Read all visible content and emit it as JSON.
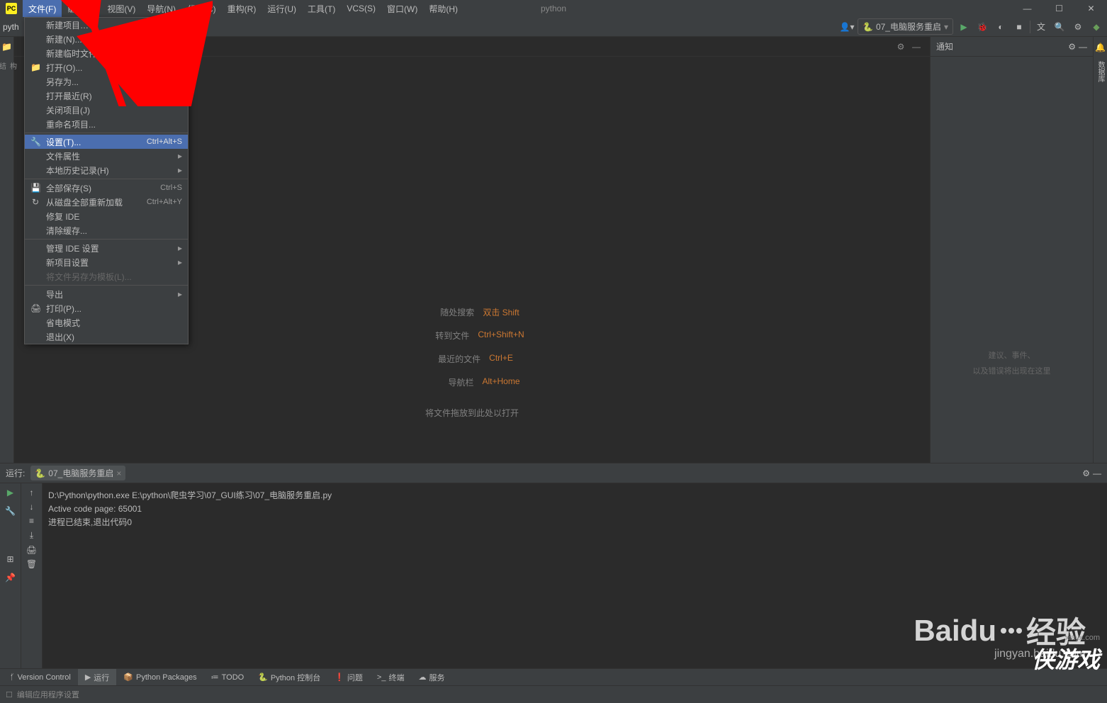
{
  "titlebar": {
    "app_label": "PC",
    "title": "python"
  },
  "menubar": {
    "items": [
      "文件(F)",
      "编辑(E)",
      "视图(V)",
      "导航(N)",
      "代码(C)",
      "重构(R)",
      "运行(U)",
      "工具(T)",
      "VCS(S)",
      "窗口(W)",
      "帮助(H)"
    ],
    "active_index": 0
  },
  "toolbar": {
    "breadcrumb": "pyth",
    "run_config_label": "07_电脑服务重启"
  },
  "right_panel": {
    "title": "通知",
    "line1": "建议、事件、",
    "line2": "以及错误将出现在这里"
  },
  "welcome": {
    "rows": [
      {
        "label": "随处搜索",
        "key": "双击 Shift"
      },
      {
        "label": "转到文件",
        "key": "Ctrl+Shift+N"
      },
      {
        "label": "最近的文件",
        "key": "Ctrl+E"
      },
      {
        "label": "导航栏",
        "key": "Alt+Home"
      }
    ],
    "drag": "将文件拖放到此处以打开"
  },
  "file_menu": {
    "items": [
      {
        "label": "新建项目…",
        "icon": "",
        "short": ""
      },
      {
        "label": "新建(N)...",
        "icon": "",
        "short": "Alt+Insert"
      },
      {
        "label": "新建临时文件",
        "icon": "",
        "short": "Alt+Shift+Insert"
      },
      {
        "label": "打开(O)...",
        "icon": "📁",
        "short": ""
      },
      {
        "label": "另存为...",
        "icon": "",
        "short": ""
      },
      {
        "label": "打开最近(R)",
        "icon": "",
        "short": "",
        "arrow": true
      },
      {
        "label": "关闭项目(J)",
        "icon": "",
        "short": ""
      },
      {
        "label": "重命名项目...",
        "icon": "",
        "short": ""
      },
      {
        "sep": true
      },
      {
        "label": "设置(T)...",
        "icon": "🔧",
        "short": "Ctrl+Alt+S",
        "active": true
      },
      {
        "label": "文件属性",
        "icon": "",
        "short": "",
        "arrow": true
      },
      {
        "label": "本地历史记录(H)",
        "icon": "",
        "short": "",
        "arrow": true
      },
      {
        "sep": true
      },
      {
        "label": "全部保存(S)",
        "icon": "💾",
        "short": "Ctrl+S"
      },
      {
        "label": "从磁盘全部重新加载",
        "icon": "↻",
        "short": "Ctrl+Alt+Y"
      },
      {
        "label": "修复 IDE",
        "icon": "",
        "short": ""
      },
      {
        "label": "清除缓存...",
        "icon": "",
        "short": ""
      },
      {
        "sep": true
      },
      {
        "label": "管理 IDE 设置",
        "icon": "",
        "short": "",
        "arrow": true
      },
      {
        "label": "新项目设置",
        "icon": "",
        "short": "",
        "arrow": true
      },
      {
        "label": "将文件另存为模板(L)...",
        "icon": "",
        "short": "",
        "disabled": true
      },
      {
        "sep": true
      },
      {
        "label": "导出",
        "icon": "",
        "short": "",
        "arrow": true
      },
      {
        "label": "打印(P)...",
        "icon": "🖨",
        "short": ""
      },
      {
        "label": "省电模式",
        "icon": "",
        "short": ""
      },
      {
        "label": "退出(X)",
        "icon": "",
        "short": ""
      }
    ]
  },
  "run_panel": {
    "header_label": "运行:",
    "tab_label": "07_电脑服务重启",
    "console": [
      "D:\\Python\\python.exe E:\\python\\爬虫学习\\07_GUI练习\\07_电脑服务重启.py",
      "Active code page: 65001",
      "",
      "进程已结束,退出代码0"
    ]
  },
  "bottom_tabs": {
    "items": [
      {
        "icon": "ᚶ",
        "label": "Version Control"
      },
      {
        "icon": "▶",
        "label": "运行",
        "active": true
      },
      {
        "icon": "📦",
        "label": "Python Packages"
      },
      {
        "icon": "≔",
        "label": "TODO"
      },
      {
        "icon": "🐍",
        "label": "Python 控制台"
      },
      {
        "icon": "❗",
        "label": "问题"
      },
      {
        "icon": ">_",
        "label": "终端"
      },
      {
        "icon": "☁",
        "label": "服务"
      }
    ]
  },
  "statusbar": {
    "text": "编辑应用程序设置"
  },
  "watermark": {
    "brand": "Baidu",
    "suffix": "经验",
    "url": "jingyan.baidu.com",
    "brand2": "侠游戏",
    "url2": "xiayx.com"
  }
}
